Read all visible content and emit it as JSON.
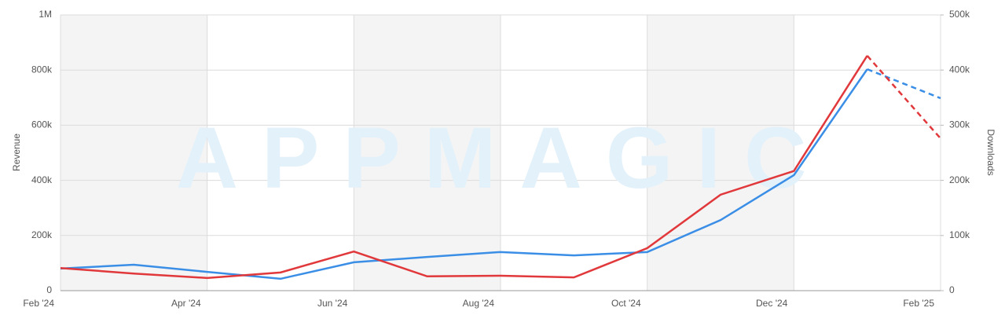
{
  "chart_data": {
    "type": "line",
    "watermark": "APPMAGIC",
    "ylabel": "Revenue",
    "y2label": "Downloads",
    "categories": [
      "Feb '24",
      null,
      "Apr '24",
      null,
      "Jun '24",
      null,
      "Aug '24",
      null,
      "Oct '24",
      null,
      "Dec '24",
      null,
      "Feb '25"
    ],
    "ylim": [
      0,
      1000000
    ],
    "yticks": [
      0,
      {
        "value": 200000,
        "label": "200k"
      },
      {
        "value": 400000,
        "label": "400k"
      },
      {
        "value": 600000,
        "label": "600k"
      },
      {
        "value": 800000,
        "label": "800k"
      },
      {
        "value": 1000000,
        "label": "1M"
      }
    ],
    "y2lim": [
      0,
      500000
    ],
    "y2ticks": [
      0,
      {
        "value": 100000,
        "label": "100k"
      },
      {
        "value": 200000,
        "label": "200k"
      },
      {
        "value": 300000,
        "label": "300k"
      },
      {
        "value": 400000,
        "label": "400k"
      },
      {
        "value": 500000,
        "label": "500k"
      }
    ],
    "grid": true,
    "series": [
      {
        "color": "#3a8ee6",
        "dash_last": true,
        "values": [
          80000,
          94000,
          68000,
          43000,
          103000,
          122000,
          140000,
          128000,
          140000,
          256000,
          419000,
          803000,
          698000
        ]
      },
      {
        "color": "#e0383b",
        "axis": "y2",
        "dash_last": true,
        "values": [
          41000,
          31000,
          23000,
          33000,
          71000,
          26000,
          27000,
          24000,
          77000,
          174000,
          217000,
          426000,
          276000
        ]
      }
    ]
  }
}
